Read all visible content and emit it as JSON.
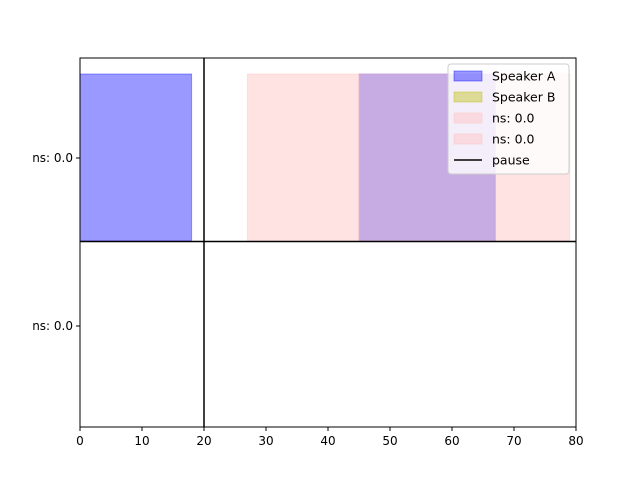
{
  "chart_data": {
    "type": "bar",
    "title": "",
    "xlabel": "",
    "ylabel": "",
    "xlim": [
      0,
      80
    ],
    "x_ticks": [
      0,
      10,
      20,
      30,
      40,
      50,
      60,
      70,
      80
    ],
    "y_ticks": [
      {
        "label": "ns: 0.0",
        "row": 1
      },
      {
        "label": "ns: 0.0",
        "row": 0
      }
    ],
    "grid": false,
    "legend_position": "top-right",
    "series": [
      {
        "name": "Speaker A",
        "color": "#0000ff",
        "opacity": 0.4,
        "row": 1,
        "segments": [
          {
            "start": 0,
            "end": 18
          },
          {
            "start": 45,
            "end": 67
          }
        ]
      },
      {
        "name": "Speaker B",
        "color": "#bbbb00",
        "opacity": 0.4,
        "row": 1,
        "segments": []
      },
      {
        "name": "ns: 0.0",
        "color": "#ffc0c0",
        "opacity": 0.45,
        "row": 1,
        "segments": [
          {
            "start": 27,
            "end": 45
          },
          {
            "start": 45,
            "end": 67
          },
          {
            "start": 67,
            "end": 79
          }
        ]
      },
      {
        "name": "ns: 0.0",
        "color": "#ffc0c0",
        "opacity": 0.45,
        "row": 0,
        "segments": []
      }
    ],
    "lines": [
      {
        "name": "pause",
        "type": "vertical",
        "x": 20,
        "color": "#000000"
      },
      {
        "name": "",
        "type": "horizontal",
        "y": 0.5,
        "color": "#000000"
      }
    ]
  }
}
